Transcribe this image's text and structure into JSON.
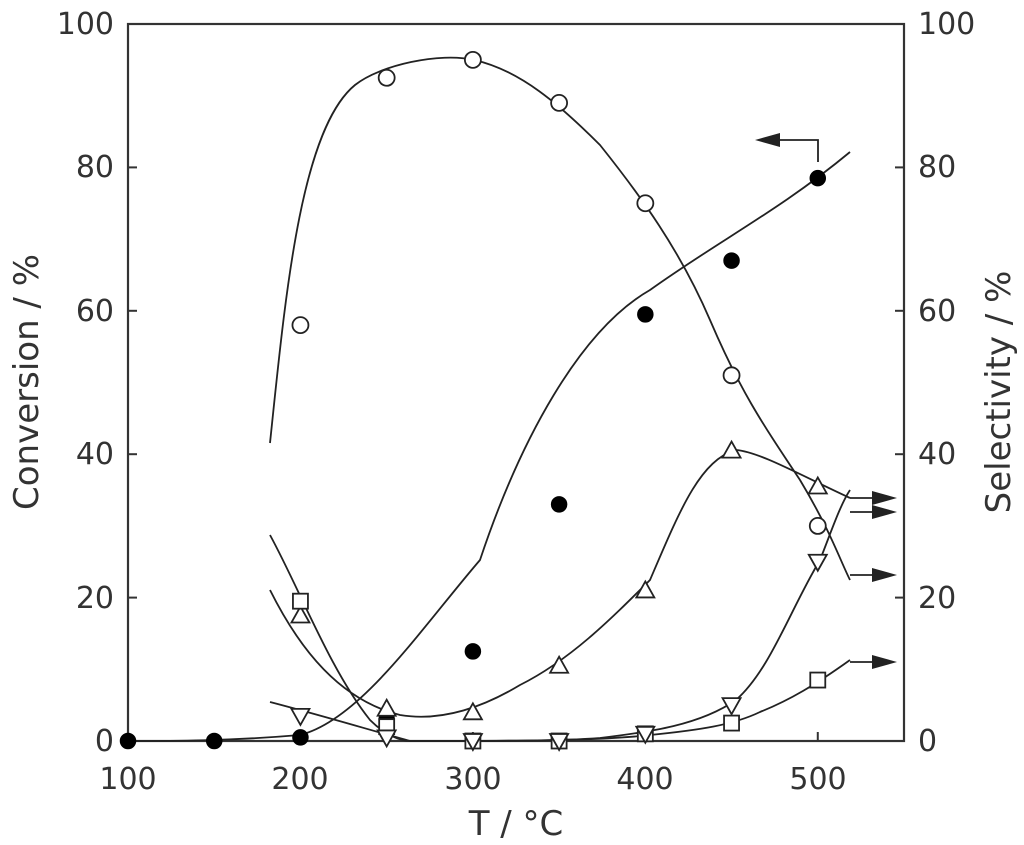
{
  "chart_data": {
    "type": "scatter",
    "title": "",
    "xlabel": "T / °C",
    "ylabel": "Conversion / %",
    "y2label": "Selectivity / %",
    "xlim": [
      100,
      550
    ],
    "ylim": [
      0,
      100
    ],
    "y2lim": [
      0,
      100
    ],
    "xticks": [
      "100",
      "200",
      "300",
      "400",
      "500"
    ],
    "yticks": [
      "0",
      "20",
      "40",
      "60",
      "80",
      "100"
    ],
    "y2ticks": [
      "0",
      "20",
      "40",
      "60",
      "80",
      "100"
    ],
    "grid": false,
    "legend": "none",
    "series": [
      {
        "marker": "filled-circle",
        "axis": "left",
        "x": [
          100,
          150,
          200,
          250,
          300,
          350,
          400,
          450,
          500
        ],
        "y": [
          0,
          0,
          0.5,
          3,
          12.5,
          33,
          59.5,
          67,
          78.5
        ]
      },
      {
        "marker": "open-circle",
        "axis": "right",
        "x": [
          200,
          250,
          300,
          350,
          400,
          450,
          500
        ],
        "y": [
          58,
          92.5,
          95,
          89,
          75,
          51,
          30
        ]
      },
      {
        "marker": "open-triangle-up",
        "axis": "right",
        "x": [
          200,
          250,
          300,
          350,
          400,
          450,
          500
        ],
        "y": [
          17.5,
          4.5,
          4,
          10.5,
          21,
          40.5,
          35.5
        ]
      },
      {
        "marker": "open-square",
        "axis": "right",
        "x": [
          200,
          250,
          300,
          350,
          400,
          450,
          500
        ],
        "y": [
          19.5,
          2,
          0,
          0,
          1,
          2.5,
          8.5
        ]
      },
      {
        "marker": "open-triangle-down",
        "axis": "right",
        "x": [
          200,
          250,
          300,
          350,
          400,
          450,
          500
        ],
        "y": [
          3.5,
          0.5,
          0,
          0,
          1,
          5,
          25
        ]
      }
    ]
  }
}
